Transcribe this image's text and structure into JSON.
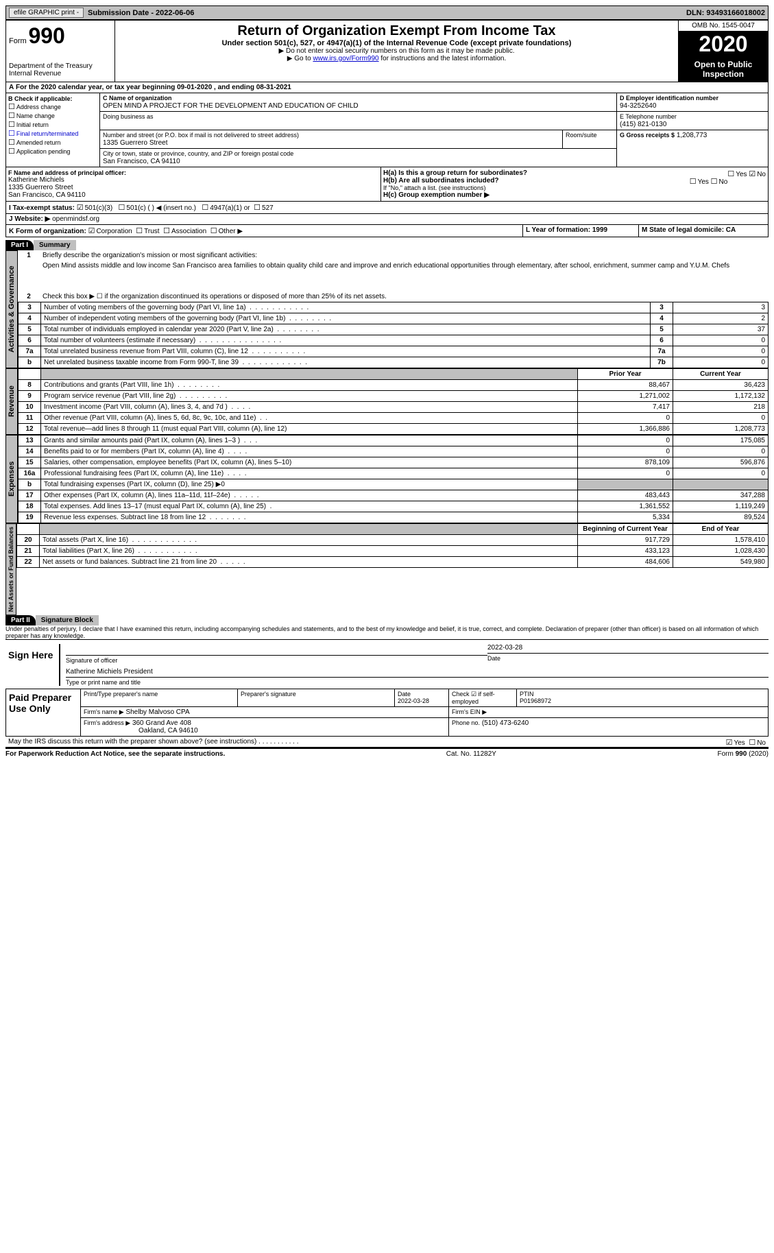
{
  "topbar": {
    "efile": "efile GRAPHIC print -",
    "submission": "Submission Date - 2022-06-06",
    "dln": "DLN: 93493166018002"
  },
  "header": {
    "form_label": "Form",
    "form_no": "990",
    "dept": "Department of the Treasury\nInternal Revenue",
    "title": "Return of Organization Exempt From Income Tax",
    "subtitle": "Under section 501(c), 527, or 4947(a)(1) of the Internal Revenue Code (except private foundations)",
    "note1": "▶ Do not enter social security numbers on this form as it may be made public.",
    "note2_pre": "▶ Go to ",
    "note2_link": "www.irs.gov/Form990",
    "note2_post": " for instructions and the latest information.",
    "omb": "OMB No. 1545-0047",
    "year": "2020",
    "open": "Open to Public Inspection"
  },
  "period": "For the 2020 calendar year, or tax year beginning 09-01-2020    , and ending 08-31-2021",
  "boxB": {
    "title": "B Check if applicable:",
    "items": [
      "Address change",
      "Name change",
      "Initial return",
      "Final return/terminated",
      "Amended return",
      "Application pending"
    ]
  },
  "boxC": {
    "label": "C Name of organization",
    "name": "OPEN MIND A PROJECT FOR THE DEVELOPMENT AND EDUCATION OF CHILD",
    "dba_label": "Doing business as",
    "addr_label": "Number and street (or P.O. box if mail is not delivered to street address)",
    "room_label": "Room/suite",
    "addr": "1335 Guerrero Street",
    "city_label": "City or town, state or province, country, and ZIP or foreign postal code",
    "city": "San Francisco, CA  94110"
  },
  "boxD": {
    "label": "D Employer identification number",
    "val": "94-3252640"
  },
  "boxE": {
    "label": "E Telephone number",
    "val": "(415) 821-0130"
  },
  "boxG": {
    "label": "G Gross receipts $",
    "val": "1,208,773"
  },
  "boxF": {
    "label": "F  Name and address of principal officer:",
    "name": "Katherine Michiels",
    "addr1": "1335 Guerrero Street",
    "addr2": "San Francisco, CA  94110"
  },
  "boxH": {
    "a": "H(a)  Is this a group return for subordinates?",
    "b": "H(b)  Are all subordinates included?",
    "note": "If \"No,\" attach a list. (see instructions)",
    "c": "H(c)  Group exemption number ▶",
    "yes": "Yes",
    "no": "No"
  },
  "boxI": {
    "label": "I   Tax-exempt status:",
    "opts": [
      "501(c)(3)",
      "501(c) (  ) ◀ (insert no.)",
      "4947(a)(1) or",
      "527"
    ]
  },
  "boxJ": {
    "label": "J   Website: ▶",
    "val": " openmindsf.org"
  },
  "boxK": {
    "label": "K Form of organization:",
    "opts": [
      "Corporation",
      "Trust",
      "Association",
      "Other ▶"
    ]
  },
  "boxL": "L Year of formation: 1999",
  "boxM": "M State of legal domicile: CA",
  "partI": {
    "label": "Part I",
    "title": "Summary",
    "q1": "Briefly describe the organization's mission or most significant activities:",
    "mission": "Open Mind assists middle and low income San Francisco area families to obtain quality child care and improve and enrich educational opportunities through elementary, after school, enrichment, summer camp and Y.U.M. Chefs",
    "q2": "Check this box ▶ ☐  if the organization discontinued its operations or disposed of more than 25% of its net assets."
  },
  "gov": {
    "section": "Activities & Governance",
    "rows": [
      {
        "n": "3",
        "d": "Number of voting members of the governing body (Part VI, line 1a)",
        "box": "3",
        "v": "3"
      },
      {
        "n": "4",
        "d": "Number of independent voting members of the governing body (Part VI, line 1b)",
        "box": "4",
        "v": "2"
      },
      {
        "n": "5",
        "d": "Total number of individuals employed in calendar year 2020 (Part V, line 2a)",
        "box": "5",
        "v": "37"
      },
      {
        "n": "6",
        "d": "Total number of volunteers (estimate if necessary)",
        "box": "6",
        "v": "0"
      },
      {
        "n": "7a",
        "d": "Total unrelated business revenue from Part VIII, column (C), line 12",
        "box": "7a",
        "v": "0"
      },
      {
        "n": "b",
        "d": "Net unrelated business taxable income from Form 990-T, line 39",
        "box": "7b",
        "v": "0"
      }
    ]
  },
  "rev": {
    "section": "Revenue",
    "hdr_prior": "Prior Year",
    "hdr_curr": "Current Year",
    "rows": [
      {
        "n": "8",
        "d": "Contributions and grants (Part VIII, line 1h)",
        "p": "88,467",
        "c": "36,423"
      },
      {
        "n": "9",
        "d": "Program service revenue (Part VIII, line 2g)",
        "p": "1,271,002",
        "c": "1,172,132"
      },
      {
        "n": "10",
        "d": "Investment income (Part VIII, column (A), lines 3, 4, and 7d )",
        "p": "7,417",
        "c": "218"
      },
      {
        "n": "11",
        "d": "Other revenue (Part VIII, column (A), lines 5, 6d, 8c, 9c, 10c, and 11e)",
        "p": "0",
        "c": "0"
      },
      {
        "n": "12",
        "d": "Total revenue—add lines 8 through 11 (must equal Part VIII, column (A), line 12)",
        "p": "1,366,886",
        "c": "1,208,773"
      }
    ]
  },
  "exp": {
    "section": "Expenses",
    "rows": [
      {
        "n": "13",
        "d": "Grants and similar amounts paid (Part IX, column (A), lines 1–3 )",
        "p": "0",
        "c": "175,085"
      },
      {
        "n": "14",
        "d": "Benefits paid to or for members (Part IX, column (A), line 4)",
        "p": "0",
        "c": "0"
      },
      {
        "n": "15",
        "d": "Salaries, other compensation, employee benefits (Part IX, column (A), lines 5–10)",
        "p": "878,109",
        "c": "596,876"
      },
      {
        "n": "16a",
        "d": "Professional fundraising fees (Part IX, column (A), line 11e)",
        "p": "0",
        "c": "0"
      },
      {
        "n": "b",
        "d": "Total fundraising expenses (Part IX, column (D), line 25) ▶0",
        "p": "",
        "c": "",
        "shade": true
      },
      {
        "n": "17",
        "d": "Other expenses (Part IX, column (A), lines 11a–11d, 11f–24e)",
        "p": "483,443",
        "c": "347,288"
      },
      {
        "n": "18",
        "d": "Total expenses. Add lines 13–17 (must equal Part IX, column (A), line 25)",
        "p": "1,361,552",
        "c": "1,119,249"
      },
      {
        "n": "19",
        "d": "Revenue less expenses. Subtract line 18 from line 12",
        "p": "5,334",
        "c": "89,524"
      }
    ]
  },
  "net": {
    "section": "Net Assets or Fund Balances",
    "hdr_beg": "Beginning of Current Year",
    "hdr_end": "End of Year",
    "rows": [
      {
        "n": "20",
        "d": "Total assets (Part X, line 16)",
        "p": "917,729",
        "c": "1,578,410"
      },
      {
        "n": "21",
        "d": "Total liabilities (Part X, line 26)",
        "p": "433,123",
        "c": "1,028,430"
      },
      {
        "n": "22",
        "d": "Net assets or fund balances. Subtract line 21 from line 20",
        "p": "484,606",
        "c": "549,980"
      }
    ]
  },
  "partII": {
    "label": "Part II",
    "title": "Signature Block",
    "decl": "Under penalties of perjury, I declare that I have examined this return, including accompanying schedules and statements, and to the best of my knowledge and belief, it is true, correct, and complete. Declaration of preparer (other than officer) is based on all information of which preparer has any knowledge."
  },
  "sign": {
    "here": "Sign Here",
    "sig_label": "Signature of officer",
    "date": "2022-03-28",
    "date_label": "Date",
    "name": "Katherine Michiels  President",
    "name_label": "Type or print name and title"
  },
  "paid": {
    "title": "Paid Preparer Use Only",
    "h1": "Print/Type preparer's name",
    "h2": "Preparer's signature",
    "h3": "Date",
    "date": "2022-03-28",
    "h4": "Check ☑ if self-employed",
    "h5": "PTIN",
    "ptin": "P01968972",
    "firm_lbl": "Firm's name    ▶",
    "firm": "Shelby Malvoso CPA",
    "ein_lbl": "Firm's EIN ▶",
    "addr_lbl": "Firm's address ▶",
    "addr": "360 Grand Ave 408",
    "addr2": "Oakland, CA  94610",
    "phone_lbl": "Phone no.",
    "phone": "(510) 473-6240"
  },
  "discuss": "May the IRS discuss this return with the preparer shown above? (see instructions)",
  "discuss_yes": "Yes",
  "discuss_no": "No",
  "footer": {
    "l": "For Paperwork Reduction Act Notice, see the separate instructions.",
    "m": "Cat. No. 11282Y",
    "r": "Form 990 (2020)"
  }
}
